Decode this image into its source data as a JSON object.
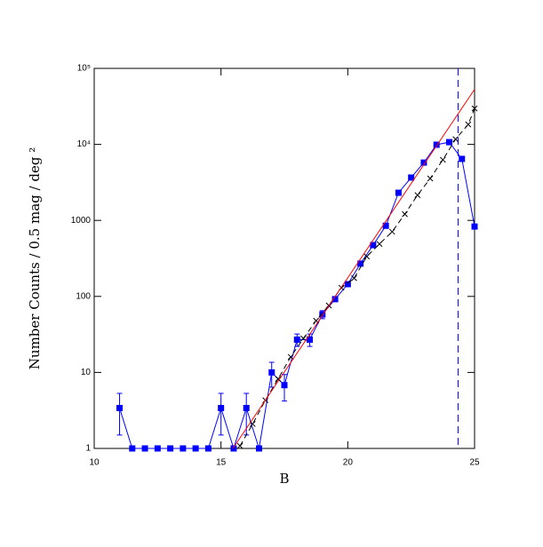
{
  "chart_data": {
    "type": "line",
    "xlabel": "B",
    "ylabel": "Number Counts / 0.5 mag / deg ²",
    "xlim": [
      10,
      25
    ],
    "xticks": [
      10,
      15,
      20,
      25
    ],
    "ylim": [
      1,
      100000
    ],
    "log_y": true,
    "yticks": [
      1,
      10,
      100,
      1000,
      {
        "value": 10000,
        "label": "10⁴"
      },
      {
        "value": 100000,
        "label": "10⁵"
      }
    ],
    "vline": 24.35,
    "vline_color": "#0000ff",
    "series": [
      {
        "name": "blue",
        "color": "#0000ff",
        "marker": "square",
        "dashed": false,
        "x": [
          11,
          11.5,
          12,
          12.5,
          13,
          13.5,
          14,
          14.5,
          15,
          15.5,
          16,
          16.5,
          17,
          17.5,
          18,
          18.5,
          19,
          19.5,
          20,
          20.5,
          21,
          21.5,
          22,
          22.5,
          23,
          23.5,
          24,
          24.5,
          25
        ],
        "values": [
          3.4,
          1,
          1,
          1,
          1,
          1,
          1,
          1,
          3.4,
          1,
          3.4,
          1,
          10,
          6.8,
          27,
          27,
          58,
          92,
          145,
          270,
          473,
          850,
          2310,
          3660,
          5760,
          9890,
          10700,
          6440,
          830
        ],
        "errors": [
          1.9,
          null,
          null,
          null,
          null,
          null,
          null,
          null,
          1.9,
          null,
          1.9,
          null,
          3.6,
          2.6,
          5,
          5,
          7,
          null,
          null,
          null,
          null,
          null,
          null,
          null,
          null,
          null,
          null,
          null,
          null
        ]
      },
      {
        "name": "black",
        "color": "#000000",
        "marker": "x",
        "dashed": true,
        "x": [
          15.75,
          16.25,
          16.75,
          17.25,
          17.75,
          18.25,
          18.75,
          19.25,
          19.75,
          20.25,
          20.75,
          21.25,
          21.75,
          22.25,
          22.75,
          23.25,
          23.75,
          24.25,
          24.75,
          25
        ],
        "values": [
          1.08,
          2.1,
          4.3,
          8.2,
          16,
          28,
          48,
          76,
          130,
          174,
          335,
          490,
          710,
          1210,
          2150,
          3560,
          6270,
          11700,
          18300,
          29700
        ],
        "errors": null
      },
      {
        "name": "fit",
        "color": "#ff0000",
        "marker": null,
        "dashed": false,
        "x": [
          15.47,
          25
        ],
        "values": [
          1,
          53000
        ],
        "errors": null
      }
    ]
  }
}
